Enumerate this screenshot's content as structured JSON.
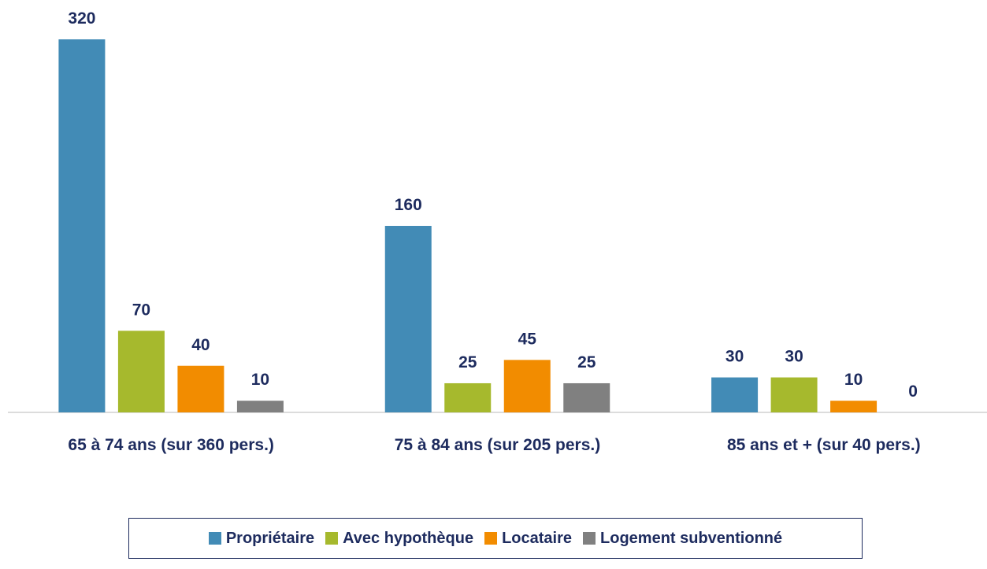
{
  "chart_data": {
    "type": "bar",
    "categories": [
      "65 à 74 ans (sur 360 pers.)",
      "75 à 84 ans (sur 205 pers.)",
      "85 ans et + (sur 40 pers.)"
    ],
    "series": [
      {
        "name": "Propriétaire",
        "color": "#428bb6",
        "values": [
          320,
          160,
          30
        ]
      },
      {
        "name": "Avec hypothèque",
        "color": "#a6b92d",
        "values": [
          70,
          25,
          30
        ]
      },
      {
        "name": "Locataire",
        "color": "#f28c00",
        "values": [
          40,
          45,
          10
        ]
      },
      {
        "name": "Logement subventionné",
        "color": "#808080",
        "values": [
          10,
          25,
          0
        ]
      }
    ],
    "legend": "bottom"
  }
}
